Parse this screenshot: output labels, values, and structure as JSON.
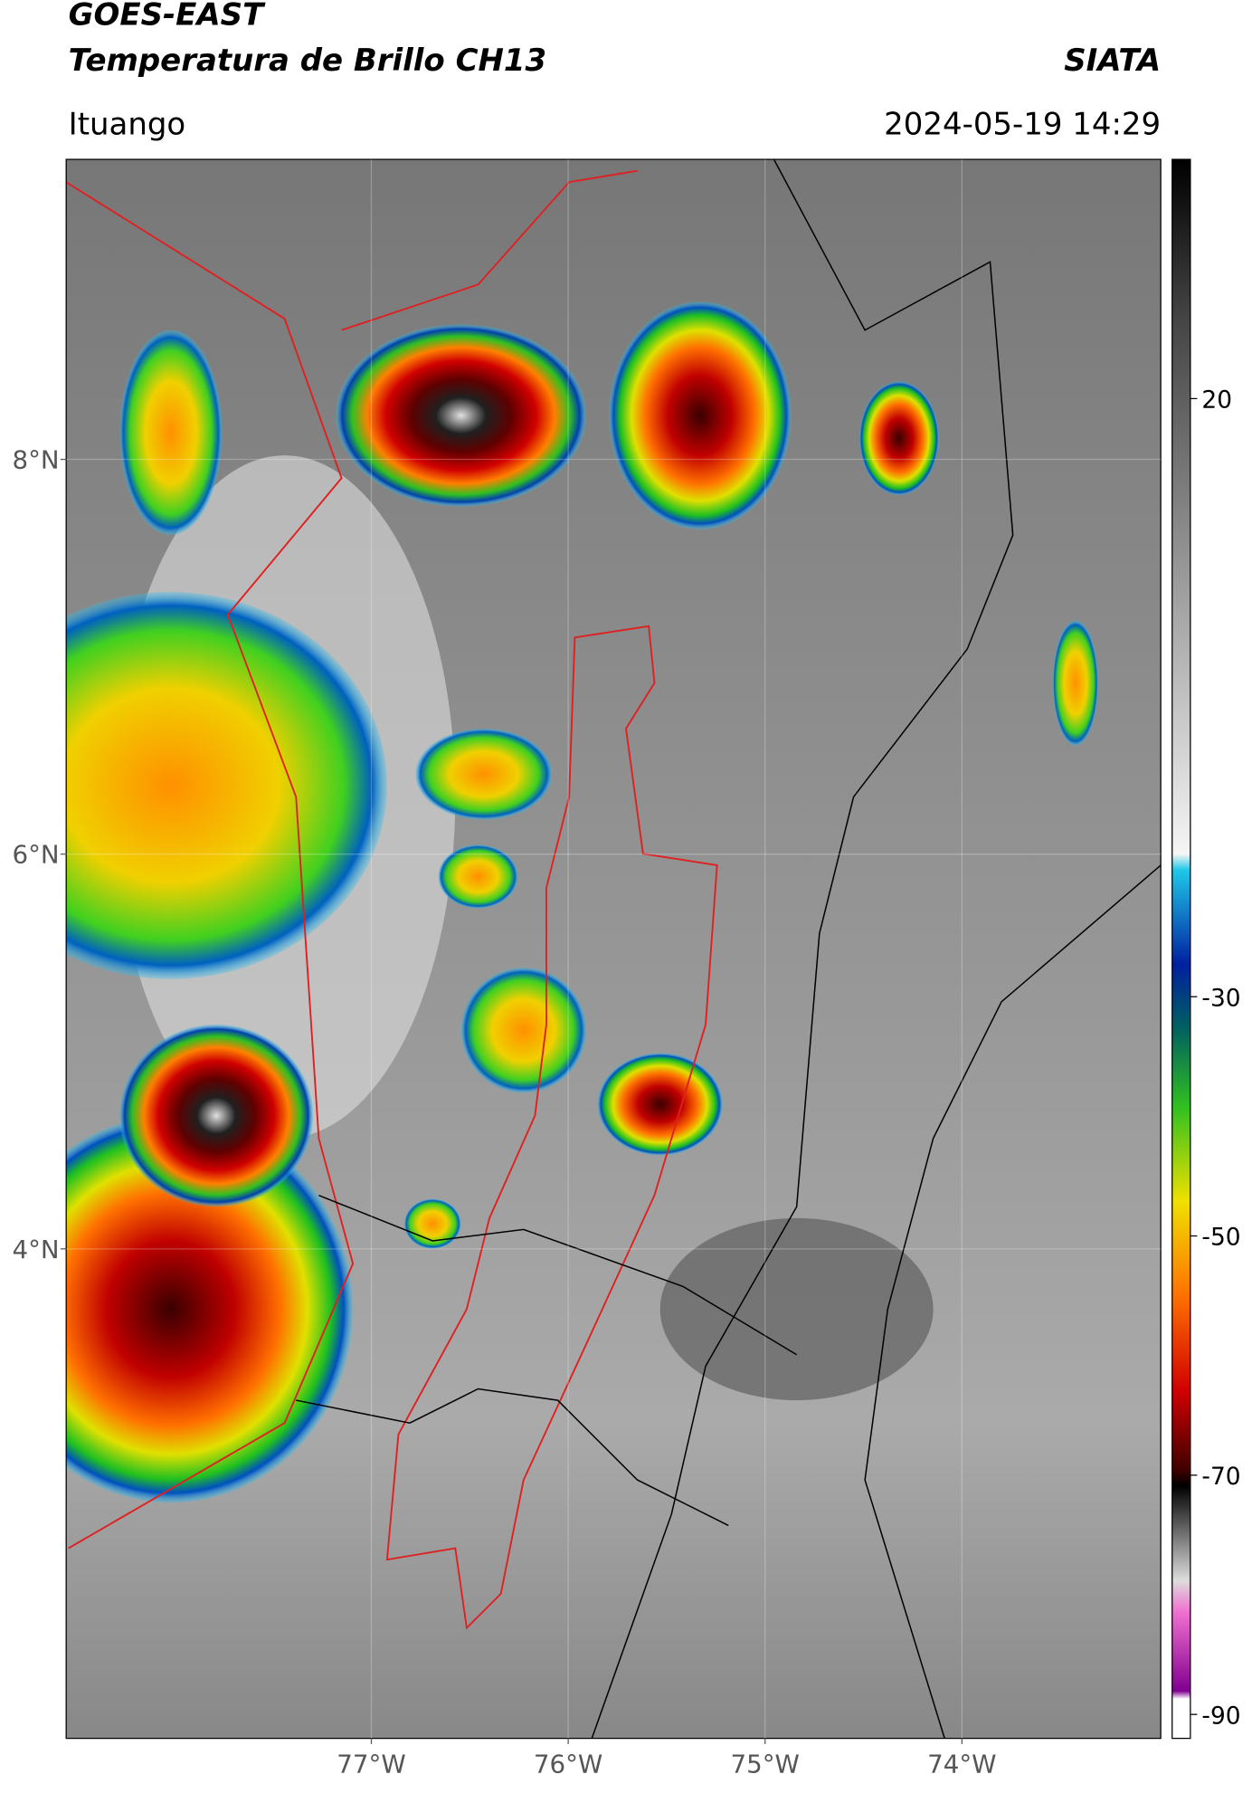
{
  "header": {
    "title_line1": "GOES-EAST",
    "title_line2": "Temperatura de Brillo CH13",
    "source": "SIATA",
    "location": "Ituango",
    "datetime": "2024-05-19 14:29"
  },
  "map": {
    "latlim": [
      1.52,
      9.52
    ],
    "lonlim": [
      -78.55,
      -72.99
    ],
    "latticks": [
      {
        "value": 8,
        "label": "8°N"
      },
      {
        "value": 6,
        "label": "6°N"
      },
      {
        "value": 4,
        "label": "4°N"
      }
    ],
    "lonticks": [
      {
        "value": -77,
        "label": "77°W"
      },
      {
        "value": -76,
        "label": "76°W"
      },
      {
        "value": -75,
        "label": "75°W"
      },
      {
        "value": -74,
        "label": "74°W"
      }
    ]
  },
  "colorbar": {
    "lim": [
      -92,
      40
    ],
    "ticks": [
      20,
      -30,
      -50,
      -70,
      -90
    ]
  }
}
